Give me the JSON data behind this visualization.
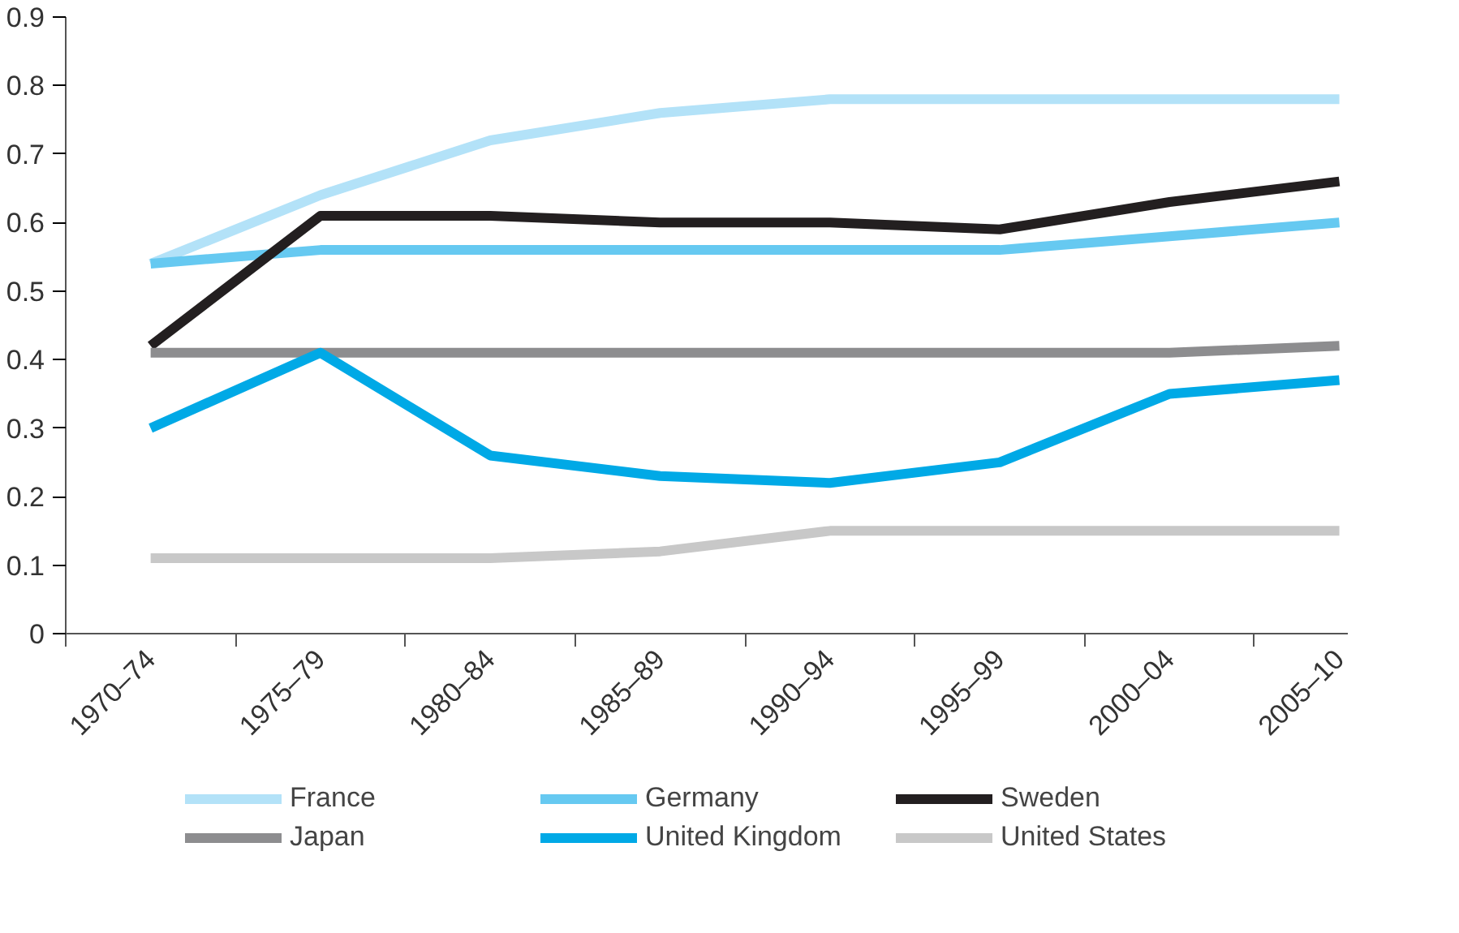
{
  "chart_data": {
    "type": "line",
    "categories": [
      "1970–74",
      "1975–79",
      "1980–84",
      "1985–89",
      "1990–94",
      "1995–99",
      "2000–04",
      "2005–10"
    ],
    "series": [
      {
        "name": "France",
        "color": "#b3e2f8",
        "values": [
          0.54,
          0.64,
          0.72,
          0.76,
          0.78,
          0.78,
          0.78,
          0.78
        ]
      },
      {
        "name": "Germany",
        "color": "#66c9f1",
        "values": [
          0.54,
          0.56,
          0.56,
          0.56,
          0.56,
          0.56,
          0.58,
          0.6
        ]
      },
      {
        "name": "Sweden",
        "color": "#231f20",
        "values": [
          0.42,
          0.61,
          0.61,
          0.6,
          0.6,
          0.59,
          0.63,
          0.66
        ]
      },
      {
        "name": "Japan",
        "color": "#8d8d8f",
        "values": [
          0.41,
          0.41,
          0.41,
          0.41,
          0.41,
          0.41,
          0.41,
          0.42
        ]
      },
      {
        "name": "United Kingdom",
        "color": "#00a9e6",
        "values": [
          0.3,
          0.41,
          0.26,
          0.23,
          0.22,
          0.25,
          0.35,
          0.37
        ]
      },
      {
        "name": "United States",
        "color": "#c8c8c8",
        "values": [
          0.11,
          0.11,
          0.11,
          0.12,
          0.15,
          0.15,
          0.15,
          0.15
        ]
      }
    ],
    "ylim": [
      0,
      0.9
    ],
    "yticks": [
      0,
      0.1,
      0.2,
      0.3,
      0.4,
      0.5,
      0.6,
      0.7,
      0.8,
      0.9
    ],
    "grid": false,
    "legend": "bottom",
    "marker": "none",
    "line_style": "solid"
  }
}
